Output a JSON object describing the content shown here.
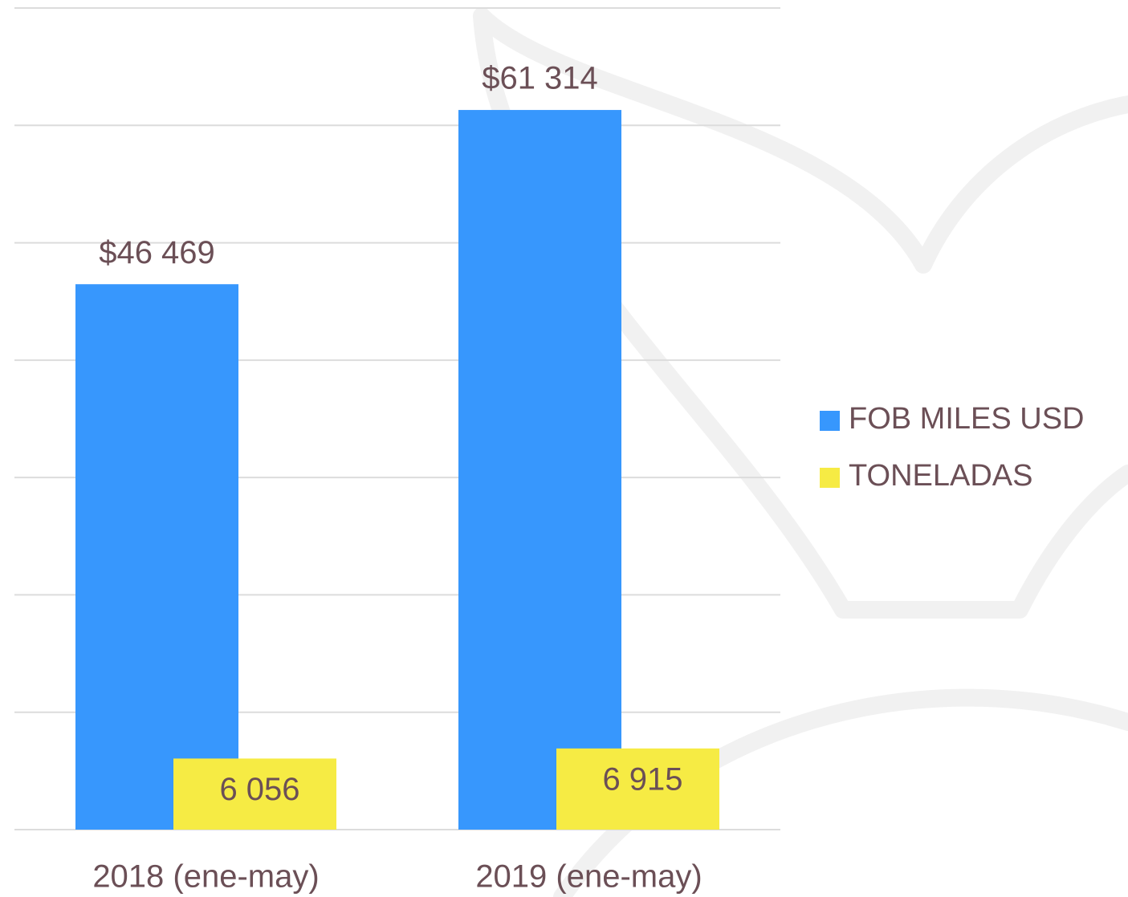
{
  "chart_data": {
    "type": "bar",
    "categories": [
      "2018 (ene-may)",
      "2019 (ene-may)"
    ],
    "series": [
      {
        "name": "FOB MILES USD",
        "color": "#3797fd",
        "values": [
          46469,
          61314
        ],
        "value_labels": [
          "$46 469",
          "$61 314"
        ]
      },
      {
        "name": "TONELADAS",
        "color": "#f6eb44",
        "values": [
          6056,
          6915
        ],
        "value_labels": [
          "6 056",
          "6 915"
        ]
      }
    ],
    "ylim": [
      0,
      70000
    ],
    "yticks": [
      0,
      10000,
      20000,
      30000,
      40000,
      50000,
      60000,
      70000
    ],
    "grid": true,
    "legend": "right"
  }
}
